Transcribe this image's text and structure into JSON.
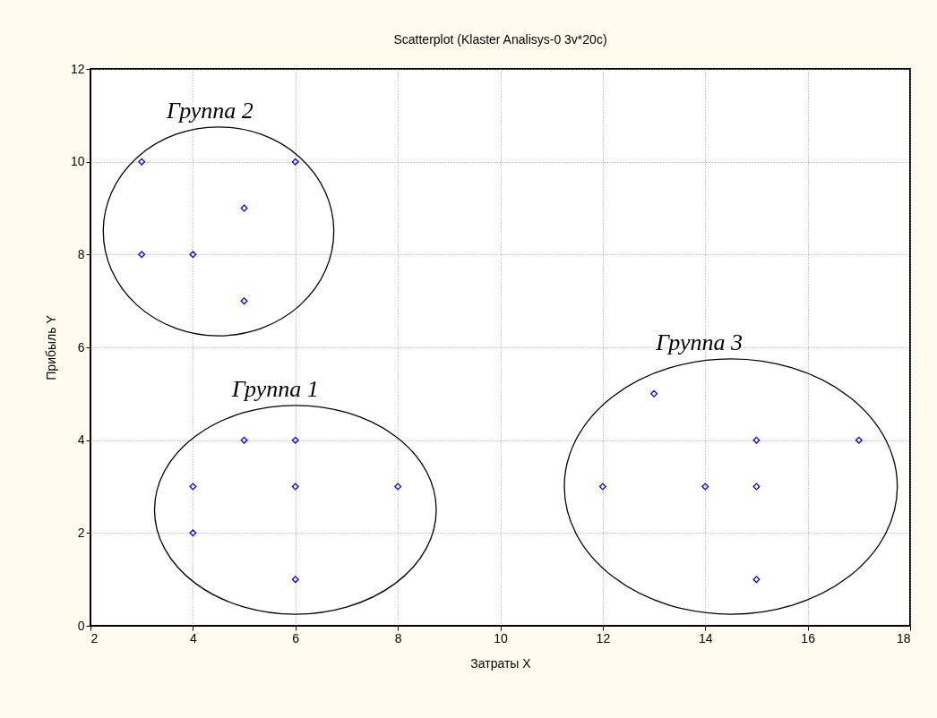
{
  "chart_data": {
    "type": "scatter",
    "title": "Scatterplot (Klaster Analisys-0 3v*20c)",
    "xlabel": "Затраты X",
    "ylabel": "Прибыль Y",
    "series": [
      {
        "name": "Группа 1",
        "color": "#0000ff",
        "x": [
          4,
          4,
          5,
          6,
          6,
          6,
          8
        ],
        "values": [
          3,
          2,
          4,
          4,
          3,
          1,
          3
        ]
      },
      {
        "name": "Группа 2",
        "color": "#0000ff",
        "x": [
          3,
          6,
          5,
          3,
          4,
          5
        ],
        "values": [
          10,
          10,
          9,
          8,
          8,
          7
        ]
      },
      {
        "name": "Группа 3",
        "color": "#0000ff",
        "x": [
          12,
          13,
          14,
          15,
          15,
          15,
          17
        ],
        "values": [
          3,
          5,
          3,
          4,
          3,
          1,
          4
        ]
      }
    ],
    "xlim": [
      2,
      18
    ],
    "xticks": [
      2,
      4,
      6,
      8,
      10,
      12,
      14,
      16,
      18
    ],
    "ylim": [
      0,
      12
    ],
    "yticks": [
      0,
      2,
      4,
      6,
      8,
      10,
      12
    ],
    "grid": true,
    "marker": "diamond",
    "legend": false
  }
}
